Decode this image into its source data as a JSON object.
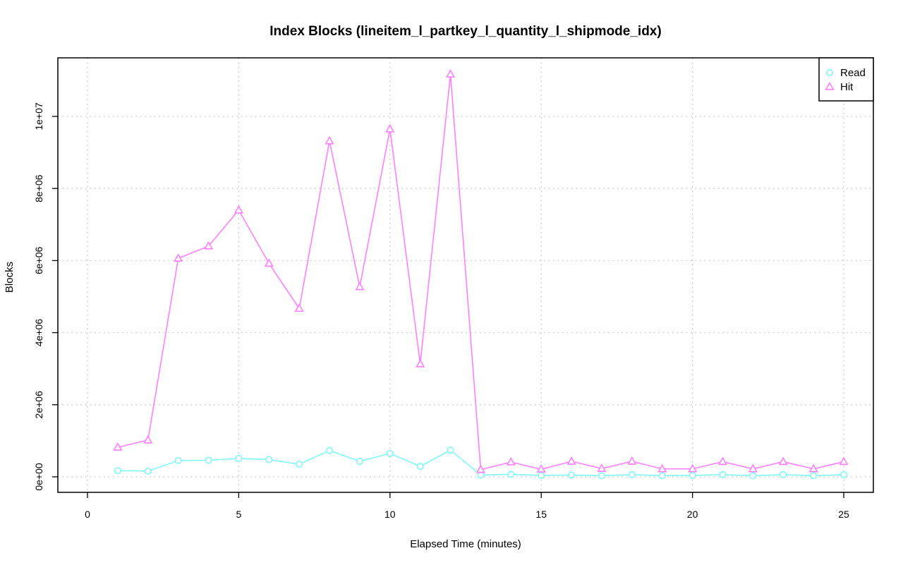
{
  "chart_data": {
    "type": "line",
    "title": "Index Blocks (lineitem_l_partkey_l_quantity_l_shipmode_idx)",
    "xlabel": "Elapsed Time (minutes)",
    "ylabel": "Blocks",
    "xlim": [
      0,
      25
    ],
    "ylim": [
      0,
      11200000
    ],
    "x_ticks": [
      0,
      5,
      10,
      15,
      20,
      25
    ],
    "x_tick_labels": [
      "0",
      "5",
      "10",
      "15",
      "20",
      "25"
    ],
    "y_ticks": [
      0,
      2000000,
      4000000,
      6000000,
      8000000,
      10000000
    ],
    "y_tick_labels": [
      "0e+00",
      "2e+06",
      "4e+06",
      "6e+06",
      "8e+06",
      "1e+07"
    ],
    "grid": true,
    "legend_position": "top-right",
    "x": [
      1,
      2,
      3,
      4,
      5,
      6,
      7,
      8,
      9,
      10,
      11,
      12,
      13,
      14,
      15,
      16,
      17,
      18,
      19,
      20,
      21,
      22,
      23,
      24,
      25
    ],
    "series": [
      {
        "name": "Read",
        "color": "#7ff8f8",
        "marker": "circle",
        "values": [
          170000,
          160000,
          450000,
          460000,
          510000,
          480000,
          350000,
          730000,
          430000,
          650000,
          290000,
          740000,
          50000,
          70000,
          40000,
          50000,
          30000,
          60000,
          30000,
          40000,
          60000,
          30000,
          60000,
          30000,
          60000
        ]
      },
      {
        "name": "Hit",
        "color": "#ff7fff",
        "marker": "triangle",
        "values": [
          820000,
          1020000,
          6060000,
          6400000,
          7400000,
          5920000,
          4670000,
          9320000,
          5270000,
          9650000,
          3130000,
          11170000,
          200000,
          410000,
          210000,
          430000,
          230000,
          430000,
          220000,
          220000,
          420000,
          220000,
          420000,
          220000,
          420000
        ]
      }
    ]
  }
}
